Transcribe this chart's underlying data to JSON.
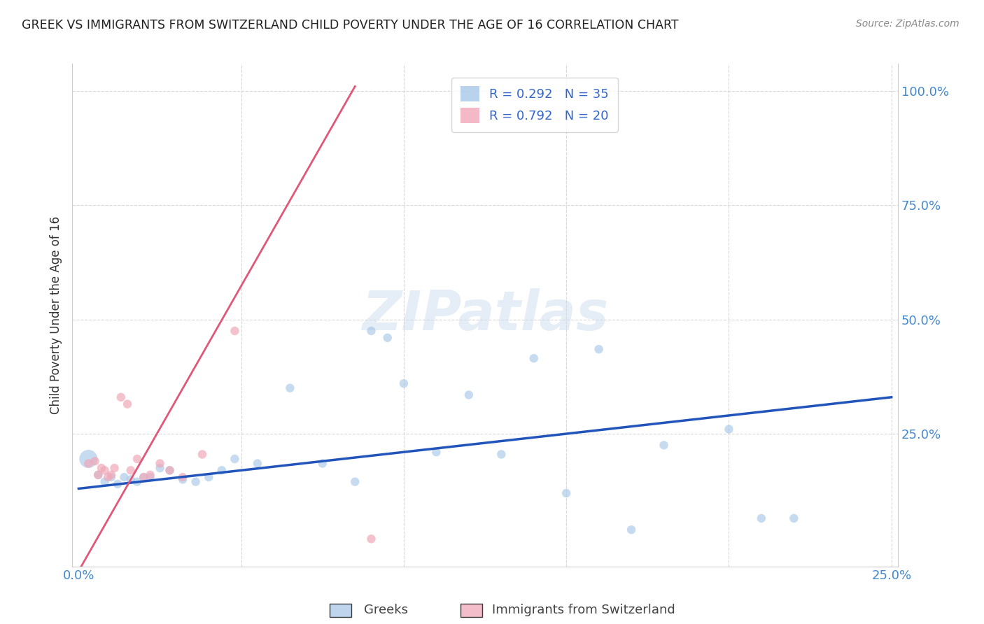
{
  "title": "GREEK VS IMMIGRANTS FROM SWITZERLAND CHILD POVERTY UNDER THE AGE OF 16 CORRELATION CHART",
  "source": "Source: ZipAtlas.com",
  "ylabel_label": "Child Poverty Under the Age of 16",
  "x_ticks": [
    0.0,
    0.05,
    0.1,
    0.15,
    0.2,
    0.25
  ],
  "x_tick_labels": [
    "0.0%",
    "",
    "",
    "",
    "",
    "25.0%"
  ],
  "y_ticks": [
    0.0,
    0.25,
    0.5,
    0.75,
    1.0
  ],
  "y_tick_labels": [
    "",
    "25.0%",
    "50.0%",
    "75.0%",
    "100.0%"
  ],
  "xlim": [
    -0.002,
    0.252
  ],
  "ylim": [
    -0.04,
    1.06
  ],
  "background_color": "#ffffff",
  "grid_color": "#d8d8d8",
  "watermark": "ZIPatlas",
  "greeks_R": 0.292,
  "greeks_N": 35,
  "swiss_R": 0.792,
  "swiss_N": 20,
  "greeks_color": "#a8c8e8",
  "swiss_color": "#f0a8b8",
  "greeks_line_color": "#2255bb",
  "swiss_line_color": "#e05878",
  "greeks_line_x0": 0.0,
  "greeks_line_y0": 0.13,
  "greeks_line_x1": 0.25,
  "greeks_line_y1": 0.33,
  "swiss_line_x0": 0.0,
  "swiss_line_y0": -0.05,
  "swiss_line_x1": 0.085,
  "swiss_line_y1": 1.01,
  "greeks_x": [
    0.003,
    0.006,
    0.008,
    0.01,
    0.012,
    0.014,
    0.016,
    0.018,
    0.02,
    0.022,
    0.025,
    0.028,
    0.032,
    0.036,
    0.04,
    0.044,
    0.048,
    0.055,
    0.065,
    0.075,
    0.085,
    0.09,
    0.095,
    0.1,
    0.11,
    0.12,
    0.13,
    0.14,
    0.15,
    0.16,
    0.17,
    0.18,
    0.2,
    0.21,
    0.22
  ],
  "greeks_y": [
    0.195,
    0.16,
    0.145,
    0.155,
    0.14,
    0.155,
    0.15,
    0.145,
    0.155,
    0.155,
    0.175,
    0.17,
    0.15,
    0.145,
    0.155,
    0.17,
    0.195,
    0.185,
    0.35,
    0.185,
    0.145,
    0.475,
    0.46,
    0.36,
    0.21,
    0.335,
    0.205,
    0.415,
    0.12,
    0.435,
    0.04,
    0.225,
    0.26,
    0.065,
    0.065
  ],
  "greeks_sizes": [
    350,
    80,
    80,
    80,
    80,
    80,
    80,
    80,
    80,
    80,
    80,
    80,
    80,
    80,
    80,
    80,
    80,
    80,
    80,
    80,
    80,
    80,
    80,
    80,
    80,
    80,
    80,
    80,
    80,
    80,
    80,
    80,
    80,
    80,
    80
  ],
  "swiss_x": [
    0.003,
    0.005,
    0.006,
    0.007,
    0.008,
    0.009,
    0.01,
    0.011,
    0.013,
    0.015,
    0.016,
    0.018,
    0.02,
    0.022,
    0.025,
    0.028,
    0.032,
    0.038,
    0.048,
    0.09
  ],
  "swiss_y": [
    0.185,
    0.19,
    0.16,
    0.175,
    0.17,
    0.155,
    0.16,
    0.175,
    0.33,
    0.315,
    0.17,
    0.195,
    0.155,
    0.16,
    0.185,
    0.17,
    0.155,
    0.205,
    0.475,
    0.02
  ],
  "swiss_sizes": [
    80,
    80,
    80,
    80,
    80,
    80,
    80,
    80,
    80,
    80,
    80,
    80,
    80,
    80,
    80,
    80,
    80,
    80,
    80,
    80
  ]
}
